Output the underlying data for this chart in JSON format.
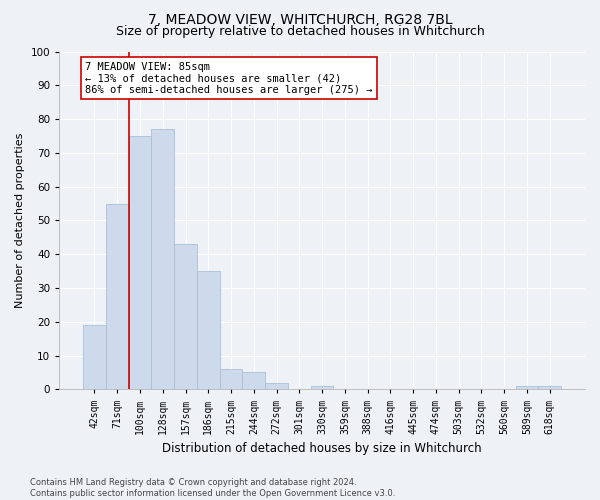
{
  "title": "7, MEADOW VIEW, WHITCHURCH, RG28 7BL",
  "subtitle": "Size of property relative to detached houses in Whitchurch",
  "xlabel": "Distribution of detached houses by size in Whitchurch",
  "ylabel": "Number of detached properties",
  "bar_labels": [
    "42sqm",
    "71sqm",
    "100sqm",
    "128sqm",
    "157sqm",
    "186sqm",
    "215sqm",
    "244sqm",
    "272sqm",
    "301sqm",
    "330sqm",
    "359sqm",
    "388sqm",
    "416sqm",
    "445sqm",
    "474sqm",
    "503sqm",
    "532sqm",
    "560sqm",
    "589sqm",
    "618sqm"
  ],
  "bar_values": [
    19,
    55,
    75,
    77,
    43,
    35,
    6,
    5,
    2,
    0,
    1,
    0,
    0,
    0,
    0,
    0,
    0,
    0,
    0,
    1,
    1
  ],
  "bar_color": "#ccdaeb",
  "bar_edgecolor": "#aac0d8",
  "ylim": [
    0,
    100
  ],
  "yticks": [
    0,
    10,
    20,
    30,
    40,
    50,
    60,
    70,
    80,
    90,
    100
  ],
  "vline_x": 1.5,
  "vline_color": "#cc0000",
  "annotation_text": "7 MEADOW VIEW: 85sqm\n← 13% of detached houses are smaller (42)\n86% of semi-detached houses are larger (275) →",
  "annotation_box_facecolor": "#ffffff",
  "annotation_box_edgecolor": "#cc0000",
  "footer_text": "Contains HM Land Registry data © Crown copyright and database right 2024.\nContains public sector information licensed under the Open Government Licence v3.0.",
  "bg_color": "#eef2f7",
  "plot_bg_color": "#eef2f7",
  "grid_color": "#ffffff",
  "title_fontsize": 10,
  "subtitle_fontsize": 9,
  "tick_fontsize": 7,
  "ylabel_fontsize": 8,
  "xlabel_fontsize": 8.5,
  "footer_fontsize": 6,
  "annotation_fontsize": 7.5
}
